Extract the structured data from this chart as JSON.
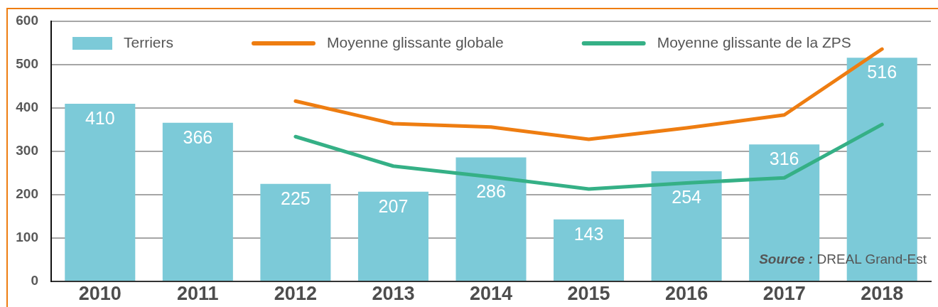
{
  "chart_data": {
    "type": "bar",
    "categories": [
      "2010",
      "2011",
      "2012",
      "2013",
      "2014",
      "2015",
      "2016",
      "2017",
      "2018"
    ],
    "series": [
      {
        "name": "Terriers",
        "color": "#7ccad8",
        "values": [
          410,
          366,
          225,
          207,
          286,
          143,
          254,
          316,
          516
        ],
        "value_labels": [
          "410",
          "366",
          "225",
          "207",
          "286",
          "143",
          "254",
          "316",
          "516"
        ]
      },
      {
        "name": "Moyenne glissante globale",
        "type": "line",
        "color": "#ee7d11",
        "values": [
          null,
          null,
          416,
          364,
          356,
          328,
          354,
          384,
          536
        ]
      },
      {
        "name": "Moyenne glissante de la ZPS",
        "type": "line",
        "color": "#35b086",
        "values": [
          null,
          null,
          334,
          266,
          241,
          213,
          227,
          239,
          362
        ]
      }
    ],
    "ylim": [
      0,
      600
    ],
    "yticks": [
      0,
      100,
      200,
      300,
      400,
      500,
      600
    ],
    "grid": "y",
    "legend": "top",
    "marker": "none",
    "line_style": "solid",
    "annotations": [
      "Source : DREAL Grand-Est"
    ]
  }
}
